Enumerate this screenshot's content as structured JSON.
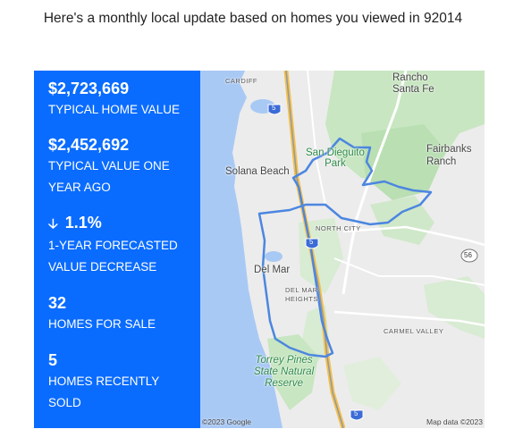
{
  "headline": "Here's a monthly local update based on homes you viewed in 92014",
  "colors": {
    "panel_blue": "#0a6cff",
    "water": "#a9c9f5",
    "park_green": "#c8e6c1",
    "boundary": "#4c86e0",
    "freeway": "#f5c04a"
  },
  "stats": {
    "typical_value": "$2,723,669",
    "typical_value_label": "TYPICAL HOME VALUE",
    "year_ago_value": "$2,452,692",
    "year_ago_label_line1": "TYPICAL VALUE ONE",
    "year_ago_label_line2": "YEAR AGO",
    "forecast_arrow_icon": "down-arrow-icon",
    "forecast_value": "1.1%",
    "forecast_label_line1": "1-YEAR FORECASTED",
    "forecast_label_line2": "VALUE DECREASE",
    "for_sale_value": "32",
    "for_sale_label": "HOMES FOR SALE",
    "sold_value": "5",
    "sold_label_line1": "HOMES RECENTLY",
    "sold_label_line2": "SOLD"
  },
  "map": {
    "labels": {
      "cardiff": "CARDIFF",
      "rancho_line1": "Rancho",
      "rancho_line2": "Santa Fe",
      "san_dieguito_line1": "San Dieguito",
      "san_dieguito_line2": "Park",
      "fairbanks_line1": "Fairbanks",
      "fairbanks_line2": "Ranch",
      "solana_beach": "Solana Beach",
      "north_city": "NORTH CITY",
      "del_mar": "Del Mar",
      "del_mar_heights_line1": "DEL MAR",
      "del_mar_heights_line2": "HEIGHTS",
      "carmel_valley": "CARMEL VALLEY",
      "torrey_line1": "Torrey Pines",
      "torrey_line2": "State Natural",
      "torrey_line3": "Reserve",
      "route_5_top": "5",
      "route_5_mid": "5",
      "route_5_bottom": "5",
      "route_56": "56"
    },
    "copyright": "©2023 Google",
    "map_data": "Map data ©2023"
  }
}
